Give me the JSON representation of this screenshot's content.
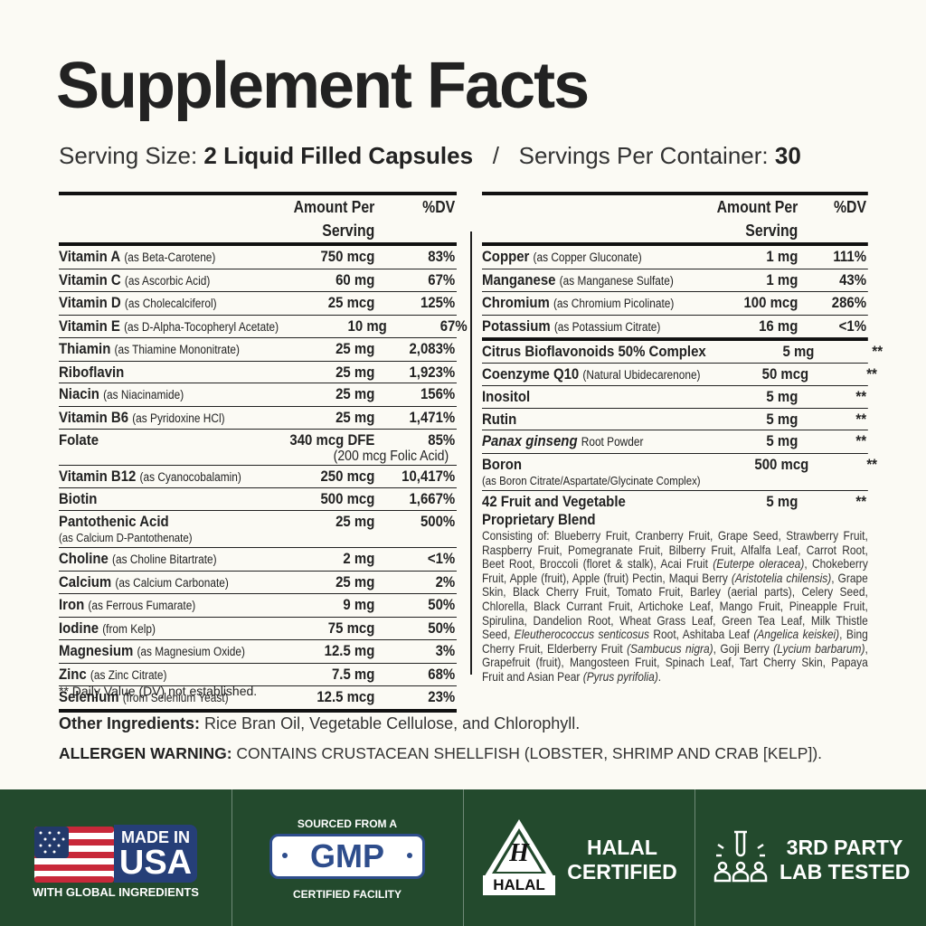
{
  "title": "Supplement Facts",
  "serving": {
    "size_label": "Serving Size:",
    "size": "2 Liquid Filled Capsules",
    "separator": "/",
    "per_container_label": "Servings Per Container:",
    "per_container": "30"
  },
  "tables": [
    {
      "header": {
        "amount": "Amount Per Serving",
        "dv": "%DV"
      },
      "groups": [
        [
          {
            "name": "Vitamin A",
            "note": "(as Beta-Carotene)",
            "amount": "750 mcg",
            "dv": "83%"
          },
          {
            "name": "Vitamin C",
            "note": "(as Ascorbic Acid)",
            "amount": "60 mg",
            "dv": "67%"
          },
          {
            "name": "Vitamin D",
            "note": "(as Cholecalciferol)",
            "amount": "25 mcg",
            "dv": "125%"
          },
          {
            "name": "Vitamin E",
            "note": "(as D-Alpha-Tocopheryl Acetate)",
            "amount": "10 mg",
            "dv": "67%"
          },
          {
            "name": "Thiamin",
            "note": "(as Thiamine Mononitrate)",
            "amount": "25 mg",
            "dv": "2,083%"
          },
          {
            "name": "Riboflavin",
            "amount": "25 mg",
            "dv": "1,923%"
          },
          {
            "name": "Niacin",
            "note": "(as Niacinamide)",
            "amount": "25 mg",
            "dv": "156%"
          },
          {
            "name": "Vitamin B6",
            "note": "(as Pyridoxine HCl)",
            "amount": "25 mg",
            "dv": "1,471%"
          },
          {
            "name": "Folate",
            "amount": "340 mcg DFE",
            "dv": "85%",
            "extra": "(200 mcg Folic Acid)"
          },
          {
            "name": "Vitamin B12",
            "note": "(as Cyanocobalamin)",
            "amount": "250 mcg",
            "dv": "10,417%"
          },
          {
            "name": "Biotin",
            "amount": "500 mcg",
            "dv": "1,667%"
          },
          {
            "name": "Pantothenic Acid",
            "note": "(as Calcium D-Pantothenate)",
            "note_below": true,
            "amount": "25 mg",
            "dv": "500%"
          },
          {
            "name": "Choline",
            "note": "(as Choline Bitartrate)",
            "amount": "2 mg",
            "dv": "<1%"
          },
          {
            "name": "Calcium",
            "note": "(as Calcium Carbonate)",
            "amount": "25 mg",
            "dv": "2%"
          },
          {
            "name": "Iron",
            "note": "(as Ferrous Fumarate)",
            "amount": "9 mg",
            "dv": "50%"
          },
          {
            "name": "Iodine",
            "note": "(from Kelp)",
            "amount": "75 mcg",
            "dv": "50%"
          },
          {
            "name": "Magnesium",
            "note": "(as Magnesium Oxide)",
            "amount": "12.5 mg",
            "dv": "3%"
          },
          {
            "name": "Zinc",
            "note": "(as Zinc Citrate)",
            "amount": "7.5 mg",
            "dv": "68%"
          },
          {
            "name": "Selenium",
            "note": "(from Selenium Yeast)",
            "amount": "12.5 mcg",
            "dv": "23%"
          }
        ]
      ]
    },
    {
      "header": {
        "amount": "Amount Per Serving",
        "dv": "%DV"
      },
      "groups": [
        [
          {
            "name": "Copper",
            "note": "(as Copper Gluconate)",
            "amount": "1 mg",
            "dv": "111%"
          },
          {
            "name": "Manganese",
            "note": "(as Manganese Sulfate)",
            "amount": "1 mg",
            "dv": "43%"
          },
          {
            "name": "Chromium",
            "note": "(as Chromium Picolinate)",
            "amount": "100 mcg",
            "dv": "286%"
          },
          {
            "name": "Potassium",
            "note": "(as Potassium Citrate)",
            "amount": "16 mg",
            "dv": "<1%"
          }
        ],
        [
          {
            "name": "Citrus Bioflavonoids 50% Complex",
            "amount": "5 mg",
            "dv": "**"
          },
          {
            "name": "Coenzyme Q10",
            "note": "(Natural Ubidecarenone)",
            "amount": "50 mcg",
            "dv": "**"
          },
          {
            "name": "Inositol",
            "amount": "5 mg",
            "dv": "**"
          },
          {
            "name": "Rutin",
            "amount": "5 mg",
            "dv": "**"
          },
          {
            "name": "Panax ginseng",
            "italic": true,
            "note": "Root Powder",
            "amount": "5 mg",
            "dv": "**"
          },
          {
            "name": "Boron",
            "note": "(as Boron Citrate/Aspartate/Glycinate Complex)",
            "note_below": true,
            "amount": "500 mcg",
            "dv": "**"
          },
          {
            "name": "42 Fruit and Vegetable Proprietary Blend",
            "amount": "5 mg",
            "dv": "**",
            "description": [
              {
                "text": "Consisting of: Blueberry Fruit, Cranberry Fruit, Grape Seed, Strawberry Fruit, Raspberry Fruit, Pomegranate Fruit, Bilberry Fruit, Alfalfa Leaf, Carrot Root, Beet Root, Broccoli (floret & stalk), Acai Fruit "
              },
              {
                "text": "(Euterpe oleracea)",
                "italic": true
              },
              {
                "text": ", Chokeberry Fruit, Apple (fruit), Apple (fruit) Pectin, Maqui Berry "
              },
              {
                "text": "(Aristotelia chilensis)",
                "italic": true
              },
              {
                "text": ", Grape Skin, Black Cherry Fruit, Tomato Fruit, Barley (aerial parts), Celery Seed, Chlorella, Black Currant Fruit, Artichoke Leaf, Mango Fruit, Pineapple Fruit, Spirulina, Dandelion Root, Wheat Grass Leaf, Green Tea Leaf, Milk Thistle Seed, "
              },
              {
                "text": "Eleutherococcus senticosus",
                "italic": true
              },
              {
                "text": " Root, Ashitaba Leaf "
              },
              {
                "text": "(Angelica keiskei)",
                "italic": true
              },
              {
                "text": ", Bing Cherry Fruit, Elderberry Fruit "
              },
              {
                "text": "(Sambucus nigra)",
                "italic": true
              },
              {
                "text": ", Goji Berry "
              },
              {
                "text": "(Lycium barbarum)",
                "italic": true
              },
              {
                "text": ", Grapefruit (fruit), Mangosteen Fruit, Spinach Leaf, Tart Cherry Skin, Papaya Fruit and Asian Pear "
              },
              {
                "text": "(Pyrus pyrifolia)",
                "italic": true
              },
              {
                "text": "."
              }
            ]
          }
        ]
      ]
    }
  ],
  "footnote": "** Daily Value (DV) not established.",
  "other_ingredients": {
    "label": "Other Ingredients:",
    "text": "Rice Bran Oil, Vegetable Cellulose, and Chlorophyll."
  },
  "allergen": {
    "label": "ALLERGEN WARNING:",
    "text": "CONTAINS CRUSTACEAN SHELLFISH (LOBSTER, SHRIMP AND CRAB [KELP])."
  },
  "badges": [
    {
      "top": "MADE IN",
      "main": "USA",
      "bottom": "WITH GLOBAL INGREDIENTS"
    },
    {
      "top": "SOURCED FROM A",
      "main": "GMP",
      "bottom": "CERTIFIED FACILITY"
    },
    {
      "icon_letter": "H",
      "icon_label": "HALAL",
      "lines": [
        "HALAL",
        "CERTIFIED"
      ]
    },
    {
      "lines": [
        "3RD PARTY",
        "LAB TESTED"
      ]
    }
  ]
}
